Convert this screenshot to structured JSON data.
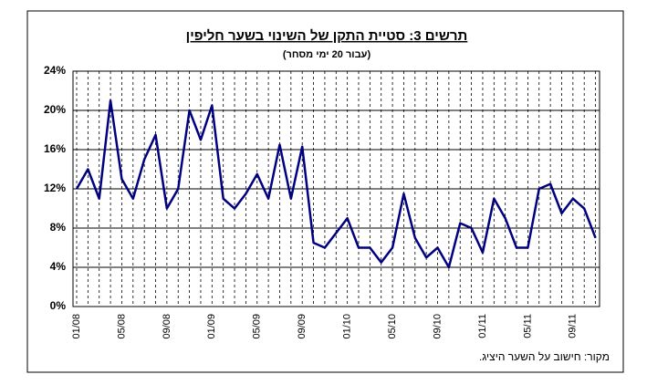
{
  "chart_data": {
    "type": "line",
    "title": "תרשים 3: סטיית התקן של השינוי בשער חליפין",
    "subtitle": "(עבור 20 ימי מסחר)",
    "source": "מקור: חישוב על השער היציג.",
    "categories": [
      "01/08",
      null,
      null,
      null,
      "05/08",
      null,
      null,
      null,
      "09/08",
      null,
      null,
      null,
      "01/09",
      null,
      null,
      null,
      "05/09",
      null,
      null,
      null,
      "09/09",
      null,
      null,
      null,
      "01/10",
      null,
      null,
      null,
      "05/10",
      null,
      null,
      null,
      "09/10",
      null,
      null,
      null,
      "01/11",
      null,
      null,
      null,
      "05/11",
      null,
      null,
      null,
      "09/11",
      null,
      null
    ],
    "values": [
      12,
      14,
      11,
      21,
      13,
      11,
      15,
      17.5,
      10,
      12,
      20,
      17,
      20.5,
      11,
      10,
      11.5,
      13.5,
      11,
      16.5,
      11,
      16.3,
      6.5,
      6,
      7.5,
      9,
      6,
      6,
      4.5,
      6,
      11.5,
      7,
      5,
      6,
      4,
      8.5,
      8,
      5.5,
      11,
      9,
      6,
      6,
      12,
      12.5,
      9.5,
      11,
      10,
      7
    ],
    "color": "#000080",
    "ylim": [
      0,
      24
    ],
    "yticks": [
      {
        "value": 0,
        "label": "0%"
      },
      {
        "value": 4,
        "label": "4%"
      },
      {
        "value": 8,
        "label": "8%"
      },
      {
        "value": 12,
        "label": "12%"
      },
      {
        "value": 16,
        "label": "16%"
      },
      {
        "value": 20,
        "label": "20%"
      },
      {
        "value": 24,
        "label": "24%"
      }
    ],
    "grid": true
  }
}
